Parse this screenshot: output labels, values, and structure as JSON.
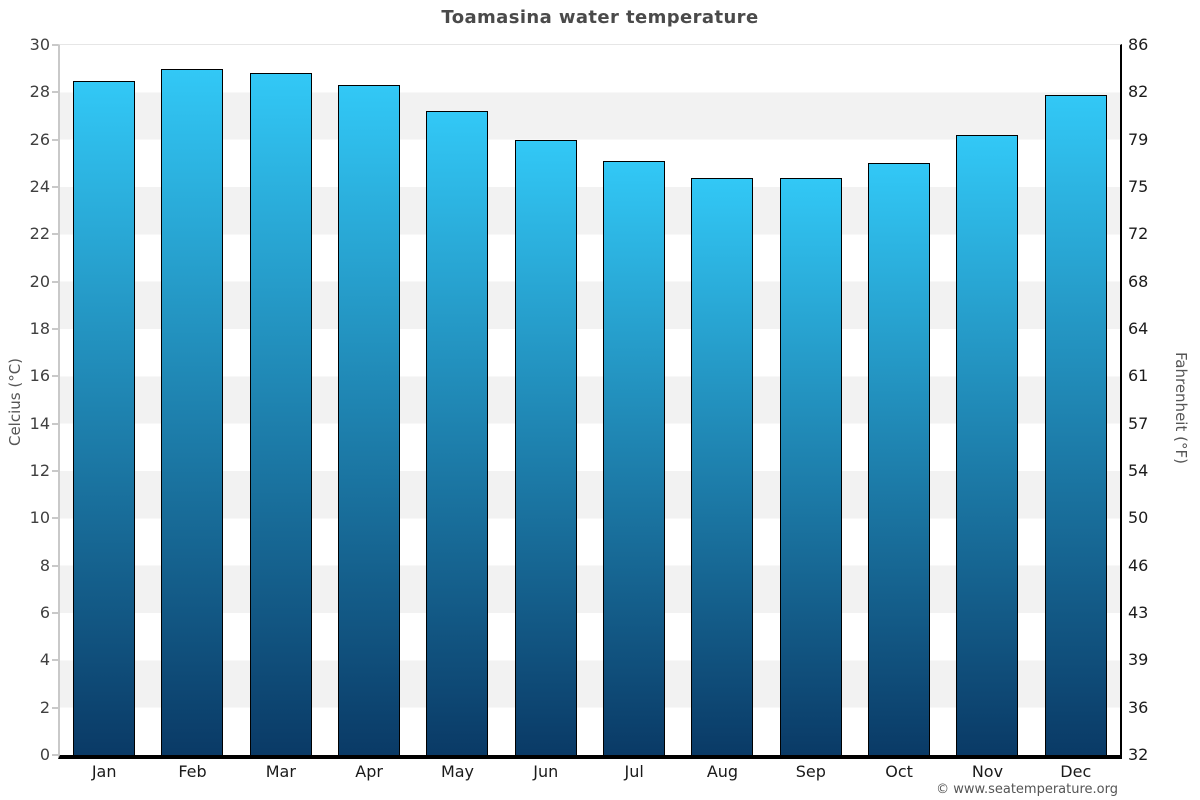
{
  "chart_data": {
    "type": "bar",
    "title": "Toamasina water temperature",
    "categories": [
      "Jan",
      "Feb",
      "Mar",
      "Apr",
      "May",
      "Jun",
      "Jul",
      "Aug",
      "Sep",
      "Oct",
      "Nov",
      "Dec"
    ],
    "values": [
      28.5,
      29,
      28.8,
      28.3,
      27.2,
      26,
      25.1,
      24.4,
      24.4,
      25,
      26.2,
      27.9
    ],
    "unit": "°C",
    "ylabel_left": "Celcius (°C)",
    "ylabel_right": "Fahrenheit (°F)",
    "ylim": [
      0,
      30
    ],
    "yticks_celsius": [
      30,
      28,
      26,
      24,
      22,
      20,
      18,
      16,
      14,
      12,
      10,
      8,
      6,
      4,
      2,
      0
    ],
    "yticks_fahrenheit": [
      86,
      82,
      79,
      75,
      72,
      68,
      64,
      61,
      57,
      54,
      50,
      46,
      43,
      39,
      36,
      32
    ],
    "legend": "none",
    "grid": "alternating horizontal bands every 2°C",
    "colors": {
      "bar_gradient_top": "#32c8f6",
      "bar_gradient_bottom": "#0a3a66",
      "bar_border": "#000000",
      "band": "#f2f2f2",
      "left_axis_line": "#c9c9c9",
      "right_axis_line": "#000000",
      "bottom_axis_line": "#000000",
      "title_color": "#4a4a4a"
    }
  },
  "footer": {
    "copyright": "© www.seatemperature.org"
  }
}
